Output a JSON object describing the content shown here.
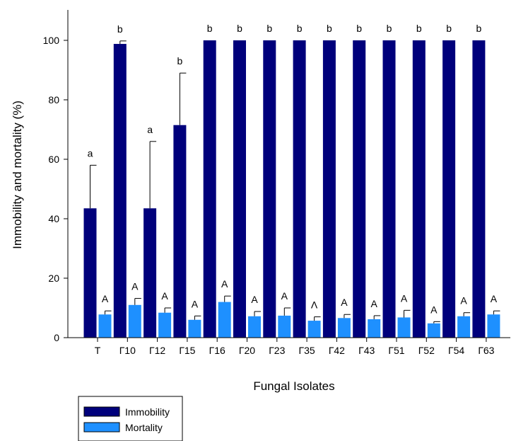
{
  "chart_data": {
    "type": "bar",
    "title": "",
    "xlabel": "Fungal Isolates",
    "ylabel": "Immobility and mortality (%)",
    "ylim": [
      0,
      100
    ],
    "yticks": [
      0,
      20,
      40,
      60,
      80,
      100
    ],
    "grid": false,
    "legend_position": "bottom-left",
    "categories": [
      "T",
      "Г10",
      "Г12",
      "Г15",
      "Г16",
      "Г20",
      "Г23",
      "Г35",
      "Г42",
      "Г43",
      "Г51",
      "Г52",
      "Г54",
      "Г63"
    ],
    "series": [
      {
        "name": "Immobility",
        "color": "#00007b",
        "values": [
          43.5,
          98.8,
          43.5,
          71.5,
          100,
          100,
          100,
          100,
          100,
          100,
          100,
          100,
          100,
          100
        ],
        "error": [
          14.5,
          1.0,
          22.5,
          17.5,
          0,
          0,
          0,
          0,
          0,
          0,
          0,
          0,
          0,
          0
        ],
        "significance": [
          "a",
          "b",
          "a",
          "b",
          "b",
          "b",
          "b",
          "b",
          "b",
          "b",
          "b",
          "b",
          "b",
          "b"
        ]
      },
      {
        "name": "Mortality",
        "color": "#1e90ff",
        "values": [
          7.8,
          11.0,
          8.4,
          6.0,
          12.0,
          7.2,
          7.4,
          5.7,
          6.6,
          6.2,
          6.8,
          4.8,
          7.2,
          7.8
        ],
        "error": [
          1.2,
          2.2,
          1.6,
          1.3,
          2.0,
          1.6,
          2.6,
          1.3,
          1.2,
          1.2,
          2.4,
          0.6,
          1.2,
          1.2
        ],
        "significance": [
          "A",
          "A",
          "A",
          "A",
          "A",
          "A",
          "A",
          "Λ",
          "A",
          "A",
          "A",
          "A",
          "A",
          "A"
        ]
      }
    ]
  }
}
